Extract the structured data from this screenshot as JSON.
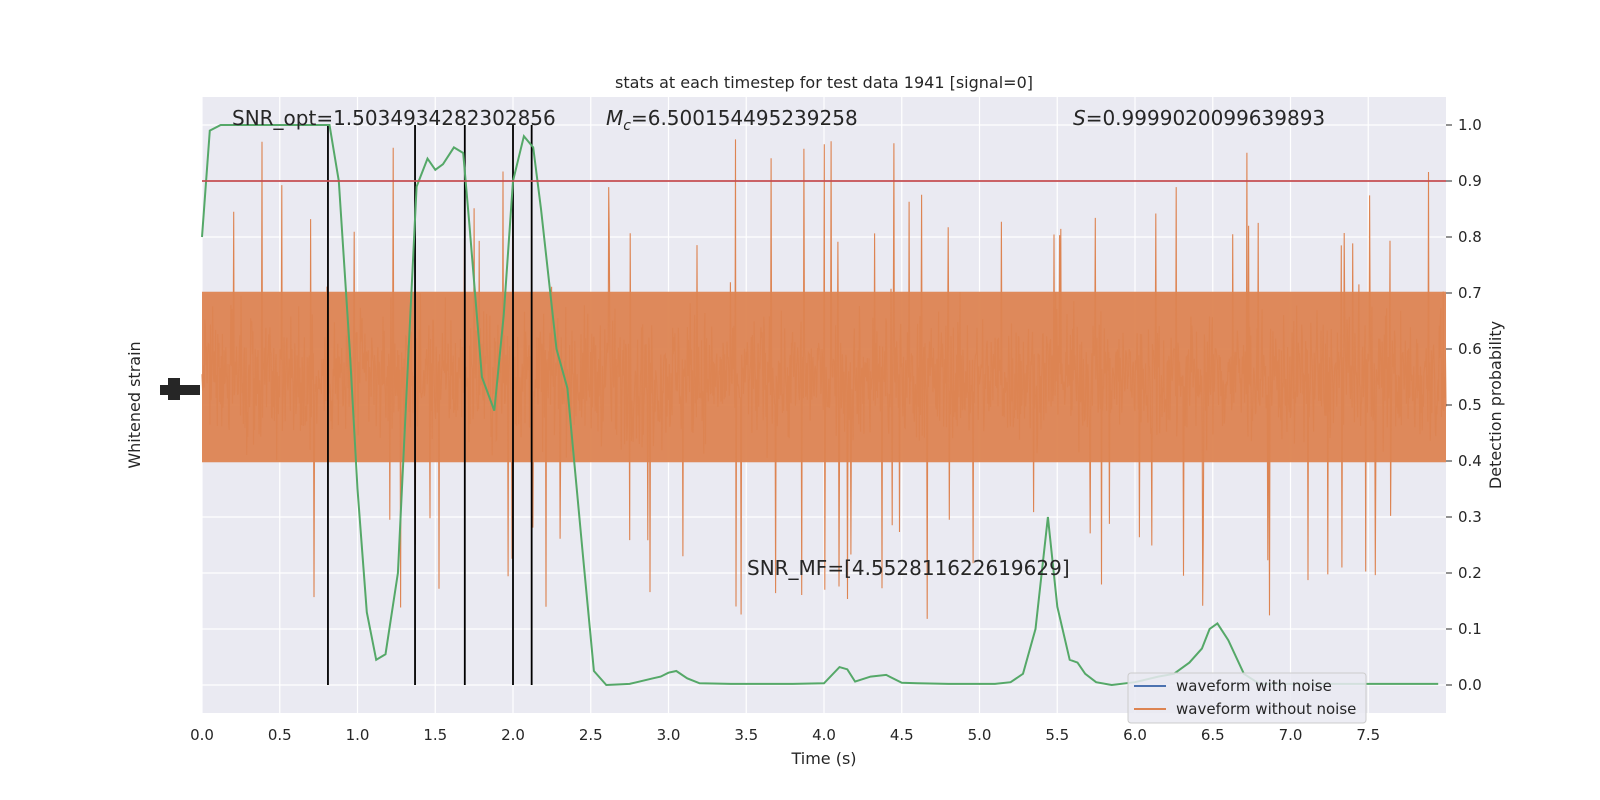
{
  "chart_data": {
    "type": "line",
    "title": "stats at each timestep for test data 1941 [signal=0]",
    "xlabel": "Time (s)",
    "ylabel_left": "Whitened strain",
    "ylabel_right": "Detection probability",
    "xlim": [
      0.0,
      8.0
    ],
    "ylim_right": [
      -0.05,
      1.05
    ],
    "x_ticks": [
      "0.0",
      "0.5",
      "1.0",
      "1.5",
      "2.0",
      "2.5",
      "3.0",
      "3.5",
      "4.0",
      "4.5",
      "5.0",
      "5.5",
      "6.0",
      "6.5",
      "7.0",
      "7.5"
    ],
    "x_tick_values": [
      0.0,
      0.5,
      1.0,
      1.5,
      2.0,
      2.5,
      3.0,
      3.5,
      4.0,
      4.5,
      5.0,
      5.5,
      6.0,
      6.5,
      7.0,
      7.5
    ],
    "y_ticks_right": [
      "0.0",
      "0.1",
      "0.2",
      "0.3",
      "0.4",
      "0.5",
      "0.6",
      "0.7",
      "0.8",
      "0.9",
      "1.0"
    ],
    "y_tick_values_right": [
      0.0,
      0.1,
      0.2,
      0.3,
      0.4,
      0.5,
      0.6,
      0.7,
      0.8,
      0.9,
      1.0
    ],
    "grid": true,
    "legend_placement": "lower-right",
    "annotations": {
      "snr_opt": "SNR_opt=1.5034934282302856",
      "mc_symbol": "M",
      "mc_sub": "c",
      "mc_value": "=6.500154495239258",
      "s_symbol": "S",
      "s_value": "=0.9999020099639893",
      "snr_mf": "SNR_MF=[4.552811622619629]"
    },
    "threshold": 0.9,
    "event_lines_x": [
      0.81,
      1.37,
      1.69,
      2.0,
      2.12
    ],
    "series": [
      {
        "name": "waveform with noise",
        "color": "#4c72b0",
        "kind": "strain"
      },
      {
        "name": "waveform without noise",
        "color": "#dd8452",
        "kind": "strain-noise",
        "baseline_probability_scale": 0.55,
        "band_half_width": 0.145
      },
      {
        "color": "#55a868",
        "kind": "detection-probability",
        "x": [
          0.0,
          0.05,
          0.12,
          0.25,
          0.4,
          0.55,
          0.7,
          0.82,
          0.88,
          0.95,
          1.0,
          1.06,
          1.12,
          1.18,
          1.26,
          1.32,
          1.38,
          1.45,
          1.5,
          1.55,
          1.62,
          1.68,
          1.72,
          1.8,
          1.88,
          1.94,
          2.0,
          2.07,
          2.13,
          2.18,
          2.28,
          2.35,
          2.45,
          2.52,
          2.6,
          2.75,
          2.9,
          2.95,
          3.0,
          3.05,
          3.12,
          3.2,
          3.4,
          3.6,
          3.8,
          4.0,
          4.1,
          4.15,
          4.2,
          4.3,
          4.4,
          4.5,
          4.6,
          4.8,
          5.0,
          5.1,
          5.2,
          5.28,
          5.36,
          5.44,
          5.5,
          5.58,
          5.63,
          5.68,
          5.75,
          5.85,
          6.0,
          6.15,
          6.25,
          6.35,
          6.43,
          6.48,
          6.53,
          6.6,
          6.7,
          6.8,
          7.0,
          7.2,
          7.4,
          7.6,
          7.8,
          7.95
        ],
        "values": [
          0.8,
          0.99,
          1.0,
          1.0,
          1.0,
          1.0,
          1.0,
          1.0,
          0.9,
          0.6,
          0.35,
          0.13,
          0.045,
          0.055,
          0.2,
          0.55,
          0.89,
          0.94,
          0.92,
          0.93,
          0.96,
          0.95,
          0.82,
          0.55,
          0.49,
          0.66,
          0.9,
          0.98,
          0.96,
          0.85,
          0.6,
          0.53,
          0.23,
          0.025,
          0.0,
          0.002,
          0.012,
          0.015,
          0.022,
          0.025,
          0.012,
          0.003,
          0.002,
          0.002,
          0.002,
          0.003,
          0.032,
          0.028,
          0.006,
          0.015,
          0.018,
          0.004,
          0.003,
          0.002,
          0.002,
          0.002,
          0.005,
          0.02,
          0.1,
          0.3,
          0.14,
          0.045,
          0.04,
          0.02,
          0.005,
          0.0,
          0.005,
          0.015,
          0.02,
          0.04,
          0.065,
          0.1,
          0.11,
          0.08,
          0.02,
          0.002,
          0.002,
          0.002,
          0.002,
          0.002,
          0.002,
          0.002
        ]
      },
      {
        "color": "#c44e52",
        "kind": "threshold-line"
      }
    ]
  }
}
